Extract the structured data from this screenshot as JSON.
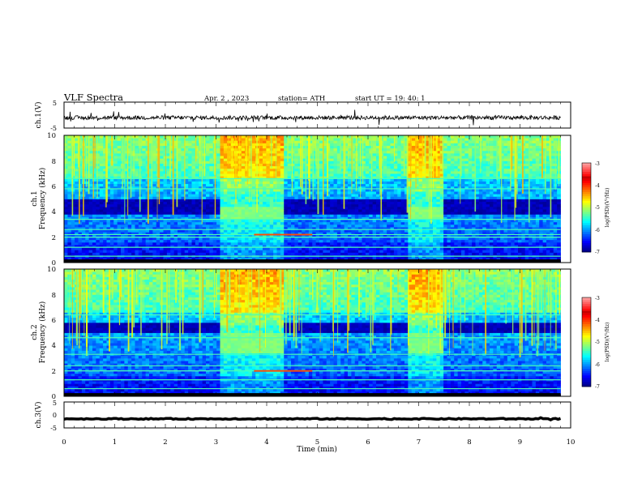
{
  "header": {
    "title": "VLF  Spectra",
    "date": "Apr. 2  , 2023",
    "station": "station= ATH",
    "start": "start  UT  =    19: 40: 1"
  },
  "chart_data": [
    {
      "type": "line",
      "name": "ch1-waveform",
      "ylabel": "ch.1(V)",
      "ylim": [
        -5,
        5
      ],
      "yticks": [
        "5",
        "-5"
      ],
      "x_range_min": [
        0,
        9.8
      ],
      "baseline_v": -1.0,
      "noise_amplitude_v": 0.8
    },
    {
      "type": "heatmap",
      "name": "ch1-spectrogram",
      "ylabel": "ch.1\nFrequency  (kHz)",
      "ylim": [
        0,
        10
      ],
      "yticks": [
        "0",
        "2",
        "4",
        "6",
        "8",
        "10"
      ],
      "xlim": [
        0,
        10
      ],
      "data_extent_min": 9.8,
      "colorbar": {
        "label": "log(PSD)(V²/Hz)",
        "range": [
          -7,
          -3
        ],
        "ticks": [
          "-3",
          "-4",
          "-5",
          "-6",
          "-7"
        ]
      },
      "bright_segments_min": [
        [
          3.05,
          4.35
        ],
        [
          6.8,
          7.5
        ]
      ],
      "bright_segment_band_khz": [
        3.5,
        4.3
      ],
      "dark_band_khz": [
        3.8,
        5.0
      ],
      "tone_lines_khz": [
        0.5,
        1.2,
        2.0,
        2.2,
        2.6,
        3.4,
        5.8,
        6.6
      ],
      "marker_segment": {
        "x_min": [
          3.75,
          4.9
        ],
        "f_khz": 2.2
      }
    },
    {
      "type": "heatmap",
      "name": "ch2-spectrogram",
      "ylabel": "ch.2\nFrequency  (kHz)",
      "ylim": [
        0,
        10
      ],
      "yticks": [
        "0",
        "2",
        "4",
        "6",
        "8",
        "10"
      ],
      "xlim": [
        0,
        10
      ],
      "data_extent_min": 9.8,
      "colorbar": {
        "label": "log(PSD)(V²/Hz)",
        "range": [
          -7,
          -3
        ],
        "ticks": [
          "-3",
          "-4",
          "-5",
          "-6",
          "-7"
        ]
      },
      "bright_segments_min": [
        [
          3.05,
          4.35
        ],
        [
          6.8,
          7.5
        ]
      ],
      "bright_segment_band_khz": [
        3.4,
        5.0
      ],
      "dark_band_khz": [
        5.0,
        5.8
      ],
      "tone_lines_khz": [
        0.6,
        1.3,
        2.0,
        2.4,
        3.3,
        4.6,
        6.4
      ],
      "marker_segment": {
        "x_min": [
          3.75,
          4.9
        ],
        "f_khz": 2.0
      }
    },
    {
      "type": "line",
      "name": "ch3-waveform",
      "ylabel": "ch.3(V)",
      "ylim": [
        -5,
        5
      ],
      "yticks": [
        "5",
        "0",
        "-5"
      ],
      "x_range_min": [
        0,
        9.8
      ],
      "baseline_v": -1.5,
      "noise_amplitude_v": 0.2,
      "xlabel": "Time  (min)",
      "xlim": [
        0,
        10
      ],
      "xticks": [
        "0",
        "1",
        "2",
        "3",
        "4",
        "5",
        "6",
        "7",
        "8",
        "9",
        "10"
      ]
    }
  ]
}
